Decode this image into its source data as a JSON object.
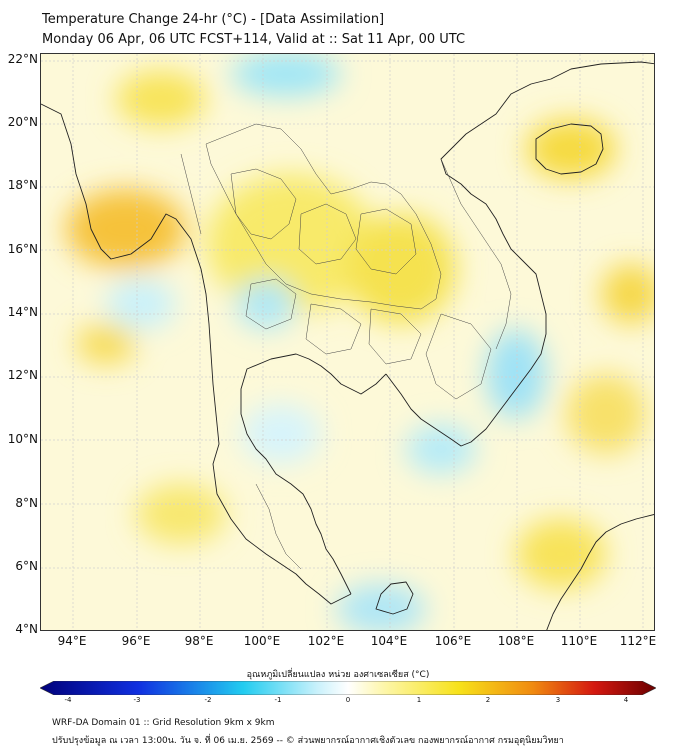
{
  "header": {
    "line1": "Temperature Change 24-hr (°C) - [Data Assimilation]",
    "line2": "Monday 06 Apr, 06 UTC FCST+114, Valid at :: Sat 11 Apr, 00 UTC"
  },
  "map": {
    "lat_labels": [
      "22°N",
      "20°N",
      "18°N",
      "16°N",
      "14°N",
      "12°N",
      "10°N",
      "8°N",
      "6°N",
      "4°N"
    ],
    "lon_labels": [
      "94°E",
      "96°E",
      "98°E",
      "100°E",
      "102°E",
      "104°E",
      "106°E",
      "108°E",
      "110°E",
      "112°E"
    ],
    "warm_anomalies": [
      {
        "area": "Myanmar coast",
        "value": 1.4
      },
      {
        "area": "Northern Myanmar",
        "value": 1.0
      },
      {
        "area": "Northeast Thailand",
        "value": 0.9
      },
      {
        "area": "Hainan",
        "value": 0.8
      },
      {
        "area": "South China Sea",
        "value": 0.9
      }
    ],
    "cool_anomalies": [
      {
        "area": "Northern border",
        "value": -0.8
      },
      {
        "area": "Central Thailand",
        "value": -0.6
      },
      {
        "area": "Vietnam south-central coast",
        "value": -0.8
      },
      {
        "area": "Mekong Delta",
        "value": -0.6
      },
      {
        "area": "Southern Gulf",
        "value": -0.6
      }
    ]
  },
  "colorbar": {
    "title": "อุณหภูมิเปลี่ยนแปลง หน่วย องศาเซลเซียส (°C)",
    "ticks": [
      "-4",
      "-3",
      "-2",
      "-1",
      "0",
      "1",
      "2",
      "3",
      "4"
    ],
    "range": [
      -4,
      4
    ],
    "colors": {
      "dark_blue": "#00007a",
      "blue": "#1030e0",
      "cyan": "#22ccf0",
      "light_cyan": "#c9f1fb",
      "white": "#ffffff",
      "light_yellow": "#fdf6a8",
      "yellow": "#f7e21a",
      "orange": "#f08a10",
      "red": "#d41810",
      "dark_red": "#6a0000"
    }
  },
  "footer": {
    "line1": "WRF-DA Domain 01 :: Grid Resolution 9km x 9km",
    "line2": "ปรับปรุงข้อมูล ณ เวลา 13:00น. วัน จ. ที่ 06 เม.ย. 2569 -- © ส่วนพยากรณ์อากาศเชิงตัวเลข กองพยากรณ์อากาศ กรมอุตุนิยมวิทยา"
  }
}
